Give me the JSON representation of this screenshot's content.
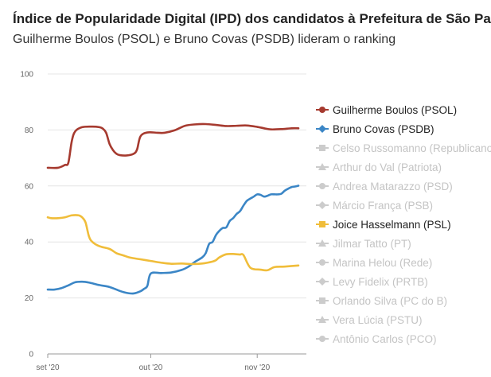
{
  "chart_data": {
    "type": "line",
    "title": "Índice de Popularidade Digital (IPD) dos candidatos à Prefeitura de São Paulo",
    "subtitle": "Guilherme Boulos (PSOL) e Bruno Covas (PSDB) lideram o ranking",
    "ylim": [
      0,
      100
    ],
    "yticks": [
      0,
      20,
      40,
      60,
      80,
      100
    ],
    "xlim": [
      "2020-09-01",
      "2020-11-13"
    ],
    "xticks": [
      {
        "date": "2020-09-01",
        "label": "set '20"
      },
      {
        "date": "2020-10-01",
        "label": "out '20"
      },
      {
        "date": "2020-11-01",
        "label": "nov '20"
      }
    ],
    "grid": true,
    "legend_position": "right",
    "colors": {
      "boulos": "#a63a2f",
      "covas": "#3b86c6",
      "joice": "#f0bd3a",
      "inactive": "#cccccc"
    },
    "series": [
      {
        "name": "Guilherme Boulos (PSOL)",
        "active": true,
        "color": "#a63a2f",
        "x": [
          "2020-09-01",
          "2020-09-04",
          "2020-09-06",
          "2020-09-07",
          "2020-09-08",
          "2020-09-09",
          "2020-09-11",
          "2020-09-14",
          "2020-09-16",
          "2020-09-17",
          "2020-09-18",
          "2020-09-19",
          "2020-09-20",
          "2020-09-21",
          "2020-09-22",
          "2020-09-24",
          "2020-09-26",
          "2020-09-27",
          "2020-09-28",
          "2020-09-30",
          "2020-10-03",
          "2020-10-05",
          "2020-10-08",
          "2020-10-11",
          "2020-10-14",
          "2020-10-17",
          "2020-10-20",
          "2020-10-23",
          "2020-10-26",
          "2020-10-29",
          "2020-11-01",
          "2020-11-03",
          "2020-11-05",
          "2020-11-08",
          "2020-11-11",
          "2020-11-13"
        ],
        "values": [
          66.5,
          66.5,
          67.5,
          68.3,
          76,
          79.5,
          81,
          81.2,
          81,
          80.5,
          79,
          75,
          72.8,
          71.5,
          71,
          70.9,
          71.5,
          73,
          77.7,
          79.1,
          79,
          79,
          79.9,
          81.5,
          82,
          82.1,
          81.8,
          81.4,
          81.5,
          81.6,
          81.1,
          80.6,
          80.2,
          80.3,
          80.6,
          80.6
        ]
      },
      {
        "name": "Bruno Covas (PSDB)",
        "active": true,
        "color": "#3b86c6",
        "x": [
          "2020-09-01",
          "2020-09-03",
          "2020-09-05",
          "2020-09-07",
          "2020-09-09",
          "2020-09-11",
          "2020-09-13",
          "2020-09-16",
          "2020-09-19",
          "2020-09-22",
          "2020-09-24",
          "2020-09-26",
          "2020-09-28",
          "2020-09-29",
          "2020-09-30",
          "2020-10-01",
          "2020-10-04",
          "2020-10-07",
          "2020-10-10",
          "2020-10-12",
          "2020-10-14",
          "2020-10-16",
          "2020-10-17",
          "2020-10-18",
          "2020-10-19",
          "2020-10-20",
          "2020-10-21",
          "2020-10-22",
          "2020-10-23",
          "2020-10-24",
          "2020-10-25",
          "2020-10-26",
          "2020-10-27",
          "2020-10-28",
          "2020-10-29",
          "2020-10-30",
          "2020-10-31",
          "2020-11-01",
          "2020-11-02",
          "2020-11-03",
          "2020-11-04",
          "2020-11-05",
          "2020-11-06",
          "2020-11-07",
          "2020-11-08",
          "2020-11-09",
          "2020-11-10",
          "2020-11-11",
          "2020-11-12",
          "2020-11-13"
        ],
        "values": [
          23,
          23,
          23.5,
          24.5,
          25.6,
          25.8,
          25.5,
          24.6,
          23.9,
          22.5,
          21.8,
          21.6,
          22.4,
          23.2,
          24.3,
          28.7,
          28.9,
          29.1,
          30,
          31.2,
          33,
          34.5,
          36,
          39.3,
          40,
          42.5,
          44,
          45,
          45.2,
          47.5,
          48.5,
          50,
          51,
          53,
          54.7,
          55.5,
          56.2,
          57,
          56.8,
          56.2,
          56.5,
          57,
          57,
          57,
          57.2,
          58.3,
          59,
          59.6,
          59.8,
          60.1
        ]
      },
      {
        "name": "Celso Russomanno (Republicanos)",
        "active": false,
        "color": "#cccccc"
      },
      {
        "name": "Arthur do Val (Patriota)",
        "active": false,
        "color": "#cccccc"
      },
      {
        "name": "Andrea Matarazzo (PSD)",
        "active": false,
        "color": "#cccccc"
      },
      {
        "name": "Márcio França (PSB)",
        "active": false,
        "color": "#cccccc"
      },
      {
        "name": "Joice Hasselmann (PSL)",
        "active": true,
        "color": "#f0bd3a",
        "x": [
          "2020-09-01",
          "2020-09-02",
          "2020-09-04",
          "2020-09-06",
          "2020-09-08",
          "2020-09-10",
          "2020-09-11",
          "2020-09-12",
          "2020-09-13",
          "2020-09-14",
          "2020-09-16",
          "2020-09-19",
          "2020-09-21",
          "2020-09-23",
          "2020-09-25",
          "2020-09-28",
          "2020-10-01",
          "2020-10-04",
          "2020-10-07",
          "2020-10-10",
          "2020-10-13",
          "2020-10-16",
          "2020-10-19",
          "2020-10-20",
          "2020-10-21",
          "2020-10-23",
          "2020-10-25",
          "2020-10-26",
          "2020-10-27",
          "2020-10-28",
          "2020-10-30",
          "2020-11-02",
          "2020-11-04",
          "2020-11-06",
          "2020-11-09",
          "2020-11-13"
        ],
        "values": [
          48.8,
          48.5,
          48.5,
          48.8,
          49.5,
          49.5,
          48.8,
          47,
          42,
          40,
          38.5,
          37.5,
          36,
          35.2,
          34.4,
          33.8,
          33.2,
          32.6,
          32.2,
          32.3,
          32.1,
          32.3,
          33,
          33.5,
          34.5,
          35.6,
          35.7,
          35.6,
          35.5,
          35.3,
          30.8,
          30.1,
          29.9,
          31,
          31.2,
          31.6
        ]
      },
      {
        "name": "Jilmar Tatto (PT)",
        "active": false,
        "color": "#cccccc"
      },
      {
        "name": "Marina Helou (Rede)",
        "active": false,
        "color": "#cccccc"
      },
      {
        "name": "Levy Fidelix (PRTB)",
        "active": false,
        "color": "#cccccc"
      },
      {
        "name": "Orlando Silva (PC do B)",
        "active": false,
        "color": "#cccccc"
      },
      {
        "name": "Vera Lúcia (PSTU)",
        "active": false,
        "color": "#cccccc"
      },
      {
        "name": "Antônio Carlos (PCO)",
        "active": false,
        "color": "#cccccc"
      }
    ]
  }
}
